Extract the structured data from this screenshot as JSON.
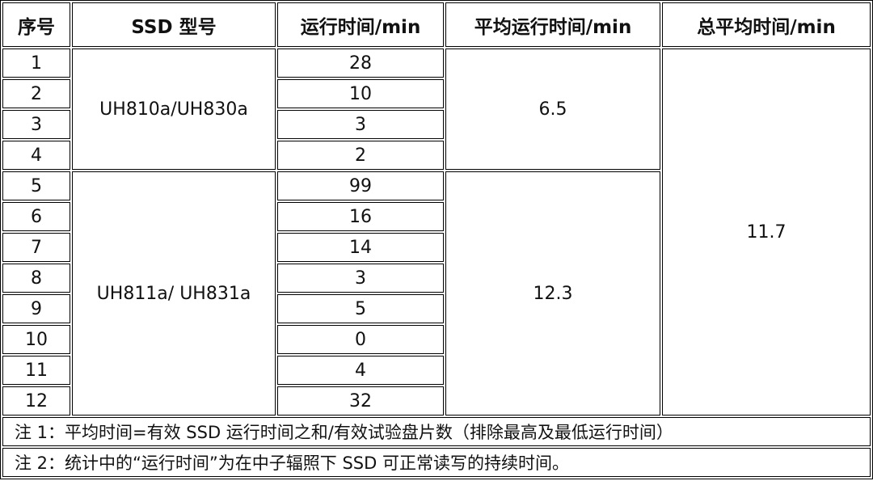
{
  "headers": [
    "序号",
    "SSD 型号",
    "运行时间/min",
    "平均运行时间/min",
    "总平均时间/min"
  ],
  "groups": [
    {
      "model": "UH810a/UH830a",
      "average": "6.5"
    },
    {
      "model": "UH811a/ UH831a",
      "average": "12.3"
    }
  ],
  "rows": [
    {
      "no": "1",
      "time": "28"
    },
    {
      "no": "2",
      "time": "10"
    },
    {
      "no": "3",
      "time": "3"
    },
    {
      "no": "4",
      "time": "2"
    },
    {
      "no": "5",
      "time": "99"
    },
    {
      "no": "6",
      "time": "16"
    },
    {
      "no": "7",
      "time": "14"
    },
    {
      "no": "8",
      "time": "3"
    },
    {
      "no": "9",
      "time": "5"
    },
    {
      "no": "10",
      "time": "0"
    },
    {
      "no": "11",
      "time": "4"
    },
    {
      "no": "12",
      "time": "32"
    }
  ],
  "total_average": "11.7",
  "notes": [
    "注 1：平均时间=有效 SSD 运行时间之和/有效试验盘片数（排除最高及最低运行时间）",
    "注 2：统计中的“运行时间”为在中子辐照下 SSD 可正常读写的持续时间。"
  ]
}
